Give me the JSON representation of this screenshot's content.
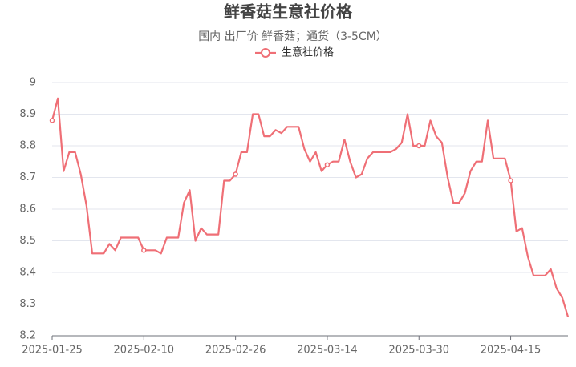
{
  "chart_data": {
    "type": "line",
    "title": "鲜香菇生意社价格",
    "subtitle": "国内 出厂价 鲜香菇；通货（3-5CM）",
    "x": [
      "2025-01-25",
      "2025-01-26",
      "2025-01-27",
      "2025-01-28",
      "2025-01-29",
      "2025-01-30",
      "2025-01-31",
      "2025-02-01",
      "2025-02-02",
      "2025-02-03",
      "2025-02-04",
      "2025-02-05",
      "2025-02-06",
      "2025-02-07",
      "2025-02-08",
      "2025-02-09",
      "2025-02-10",
      "2025-02-11",
      "2025-02-12",
      "2025-02-13",
      "2025-02-14",
      "2025-02-15",
      "2025-02-16",
      "2025-02-17",
      "2025-02-18",
      "2025-02-19",
      "2025-02-20",
      "2025-02-21",
      "2025-02-22",
      "2025-02-23",
      "2025-02-24",
      "2025-02-25",
      "2025-02-26",
      "2025-02-27",
      "2025-02-28",
      "2025-03-01",
      "2025-03-02",
      "2025-03-03",
      "2025-03-04",
      "2025-03-05",
      "2025-03-06",
      "2025-03-07",
      "2025-03-08",
      "2025-03-09",
      "2025-03-10",
      "2025-03-11",
      "2025-03-12",
      "2025-03-13",
      "2025-03-14",
      "2025-03-15",
      "2025-03-16",
      "2025-03-17",
      "2025-03-18",
      "2025-03-19",
      "2025-03-20",
      "2025-03-21",
      "2025-03-22",
      "2025-03-23",
      "2025-03-24",
      "2025-03-25",
      "2025-03-26",
      "2025-03-27",
      "2025-03-28",
      "2025-03-29",
      "2025-03-30",
      "2025-03-31",
      "2025-04-01",
      "2025-04-02",
      "2025-04-03",
      "2025-04-04",
      "2025-04-05",
      "2025-04-06",
      "2025-04-07",
      "2025-04-08",
      "2025-04-09",
      "2025-04-10",
      "2025-04-11",
      "2025-04-12",
      "2025-04-13",
      "2025-04-14",
      "2025-04-15",
      "2025-04-16",
      "2025-04-17",
      "2025-04-18",
      "2025-04-19",
      "2025-04-20",
      "2025-04-21",
      "2025-04-22",
      "2025-04-23",
      "2025-04-24",
      "2025-04-25"
    ],
    "series": [
      {
        "name": "生意社价格",
        "color": "#ef6f76",
        "values": [
          8.88,
          8.95,
          8.72,
          8.78,
          8.78,
          8.71,
          8.61,
          8.46,
          8.46,
          8.46,
          8.49,
          8.47,
          8.51,
          8.51,
          8.51,
          8.51,
          8.47,
          8.47,
          8.47,
          8.46,
          8.51,
          8.51,
          8.51,
          8.62,
          8.66,
          8.5,
          8.54,
          8.52,
          8.52,
          8.52,
          8.69,
          8.69,
          8.71,
          8.78,
          8.78,
          8.9,
          8.9,
          8.83,
          8.83,
          8.85,
          8.84,
          8.86,
          8.86,
          8.86,
          8.79,
          8.75,
          8.78,
          8.72,
          8.74,
          8.75,
          8.75,
          8.82,
          8.75,
          8.7,
          8.71,
          8.76,
          8.78,
          8.78,
          8.78,
          8.78,
          8.79,
          8.81,
          8.9,
          8.8,
          8.8,
          8.8,
          8.88,
          8.83,
          8.81,
          8.7,
          8.62,
          8.62,
          8.65,
          8.72,
          8.75,
          8.75,
          8.88,
          8.76,
          8.76,
          8.76,
          8.69,
          8.53,
          8.54,
          8.45,
          8.39,
          8.39,
          8.39,
          8.41,
          8.35,
          8.32,
          8.26
        ]
      }
    ],
    "xticks": [
      "2025-01-25",
      "2025-02-10",
      "2025-02-26",
      "2025-03-14",
      "2025-03-30",
      "2025-04-15"
    ],
    "ylim": [
      8.2,
      9
    ],
    "yticks": [
      8.2,
      8.3,
      8.4,
      8.5,
      8.6,
      8.7,
      8.8,
      8.9,
      9
    ],
    "grid": true
  }
}
